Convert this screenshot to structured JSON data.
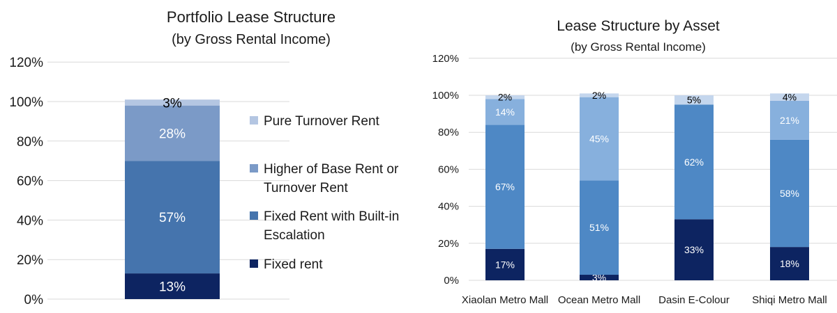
{
  "chart_data": [
    {
      "type": "bar",
      "stacked": true,
      "title": "Portfolio Lease Structure",
      "subtitle": "(by Gross Rental Income)",
      "categories": [
        ""
      ],
      "ylim": [
        0,
        120
      ],
      "yticks": [
        "0%",
        "20%",
        "40%",
        "60%",
        "80%",
        "100%",
        "120%"
      ],
      "grid": true,
      "legend_position": "right",
      "series": [
        {
          "name": "Fixed rent",
          "values": [
            13
          ],
          "labels": [
            "13%"
          ],
          "color": "#0d2461",
          "label_color": "#ffffff"
        },
        {
          "name": "Fixed Rent with Built-in Escalation",
          "values": [
            57
          ],
          "labels": [
            "57%"
          ],
          "color": "#4574ad",
          "label_color": "#ffffff"
        },
        {
          "name": "Higher of Base Rent or Turnover Rent",
          "values": [
            28
          ],
          "labels": [
            "28%"
          ],
          "color": "#7b9ac7",
          "label_color": "#ffffff"
        },
        {
          "name": "Pure Turnover Rent",
          "values": [
            3
          ],
          "labels": [
            "3%"
          ],
          "color": "#b4c6e2",
          "label_color": "#000000"
        }
      ],
      "legend": {
        "items": [
          {
            "lines": [
              "Pure Turnover Rent"
            ],
            "color": "#b4c6e2"
          },
          {
            "lines": [
              "Higher of Base Rent or",
              "Turnover Rent"
            ],
            "color": "#7b9ac7"
          },
          {
            "lines": [
              "Fixed Rent with Built-in",
              "Escalation"
            ],
            "color": "#4574ad"
          },
          {
            "lines": [
              "Fixed rent"
            ],
            "color": "#0d2461"
          }
        ]
      }
    },
    {
      "type": "bar",
      "stacked": true,
      "title": "Lease Structure by Asset",
      "subtitle": "(by Gross Rental Income)",
      "categories": [
        "Xiaolan Metro Mall",
        "Ocean Metro Mall",
        "Dasin E-Colour",
        "Shiqi Metro Mall"
      ],
      "ylim": [
        0,
        120
      ],
      "yticks": [
        "0%",
        "20%",
        "40%",
        "60%",
        "80%",
        "100%",
        "120%"
      ],
      "grid": true,
      "series": [
        {
          "values": [
            17,
            3,
            33,
            18
          ],
          "labels": [
            "17%",
            "3%",
            "33%",
            "18%"
          ],
          "color": "#0d2461",
          "label_color": "#ffffff"
        },
        {
          "values": [
            67,
            51,
            62,
            58
          ],
          "labels": [
            "67%",
            "51%",
            "62%",
            "58%"
          ],
          "color": "#4e88c5",
          "label_color": "#ffffff"
        },
        {
          "values": [
            14,
            45,
            0,
            21
          ],
          "labels": [
            "14%",
            "45%",
            "",
            "21%"
          ],
          "color": "#87b0dd",
          "label_color": "#ffffff"
        },
        {
          "values": [
            2,
            2,
            5,
            4
          ],
          "labels": [
            "2%",
            "2%",
            "5%",
            "4%"
          ],
          "color": "#c4d6ed",
          "label_color": "#000000"
        }
      ]
    }
  ]
}
